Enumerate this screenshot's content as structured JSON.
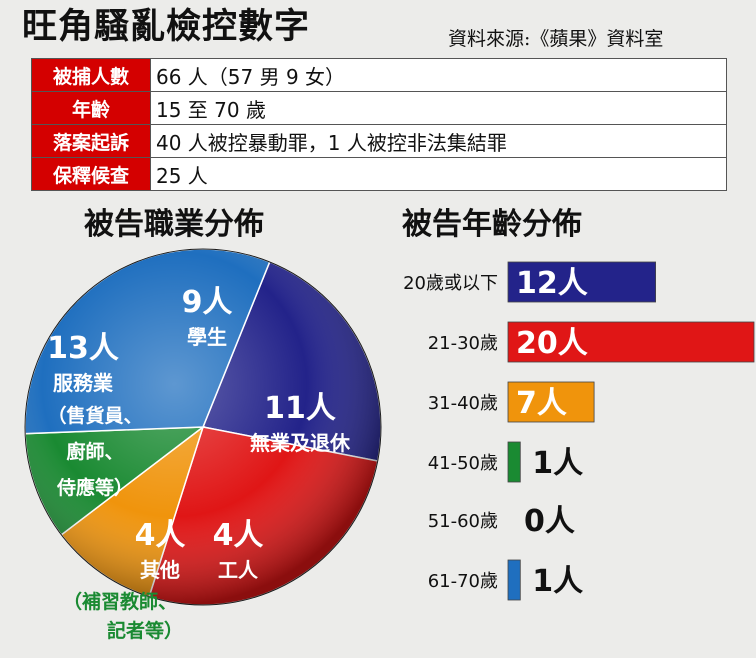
{
  "header": {
    "title": "旺角騷亂檢控數字",
    "source": "資料來源:《蘋果》資料室"
  },
  "facts": [
    {
      "label": "被捕人數",
      "value": "66 人（57 男 9 女）"
    },
    {
      "label": "年齡",
      "value": "15 至 70 歲"
    },
    {
      "label": "落案起訴",
      "value": "40 人被控暴動罪，1 人被控非法集結罪"
    },
    {
      "label": "保釋候查",
      "value": "25 人"
    }
  ],
  "chart_data": [
    {
      "type": "pie",
      "title": "被告職業分佈",
      "slices": [
        {
          "value_label": "9人",
          "category": "學生",
          "note": "",
          "value": 9,
          "color": "#23238a"
        },
        {
          "value_label": "11人",
          "category": "無業及退休",
          "note": "",
          "value": 11,
          "color": "#e01616"
        },
        {
          "value_label": "4人",
          "category": "工人",
          "note": "",
          "value": 4,
          "color": "#f0940c"
        },
        {
          "value_label": "4人",
          "category": "其他",
          "note": "（補習教師、記者等）",
          "value": 4,
          "color": "#1a8a32"
        },
        {
          "value_label": "13人",
          "category": "服務業",
          "note": "（售貨員、廚師、侍應等）",
          "value": 13,
          "color": "#1f6fbf"
        }
      ]
    },
    {
      "type": "bar",
      "title": "被告年齡分佈",
      "categories": [
        "20歲或以下",
        "21-30歲",
        "31-40歲",
        "41-50歲",
        "51-60歲",
        "61-70歲"
      ],
      "values": [
        12,
        20,
        7,
        1,
        0,
        1
      ],
      "value_labels": [
        "12人",
        "20人",
        "7人",
        "1人",
        "0人",
        "1人"
      ],
      "colors": [
        "#23238a",
        "#e01616",
        "#f0940c",
        "#1a8a32",
        "#1a8a32",
        "#1f6fbf"
      ]
    }
  ]
}
